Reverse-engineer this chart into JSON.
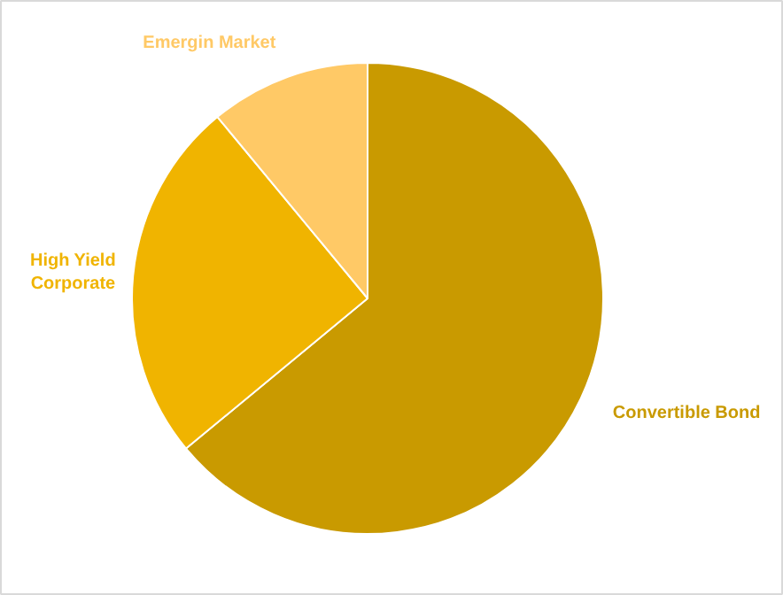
{
  "chart_data": {
    "type": "pie",
    "categories": [
      "Convertible Bond",
      "High Yield Corporate",
      "Emergin Market"
    ],
    "values": [
      64,
      25,
      11
    ],
    "colors": [
      "#c99a00",
      "#f0b400",
      "#ffc966"
    ]
  }
}
